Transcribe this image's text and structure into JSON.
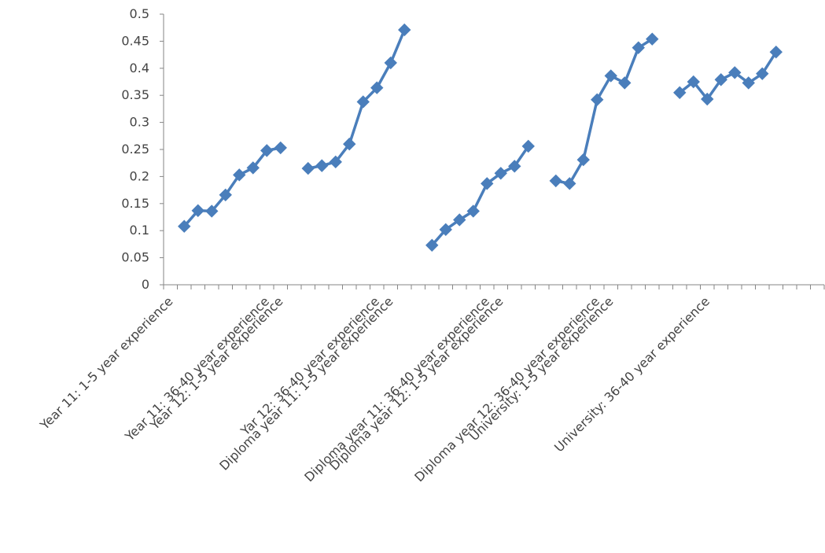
{
  "chart_data": {
    "type": "line",
    "title": "",
    "xlabel": "",
    "ylabel": "",
    "ylim": [
      0,
      0.5
    ],
    "yticks": [
      "0",
      "0.05",
      "0.1",
      "0.15",
      "0.2",
      "0.25",
      "0.3",
      "0.35",
      "0.4",
      "0.45",
      "0.5"
    ],
    "grid": false,
    "legend": "none",
    "line_color": "#4a7ebb",
    "category_count": 48,
    "categories": [
      {
        "index": 1,
        "label": "Year 11: 1-5 year experience"
      },
      {
        "index": 8,
        "label": "Year 11: 36-40 year experience"
      },
      {
        "index": 9,
        "label": "Year 12: 1-5 year experience"
      },
      {
        "index": 16,
        "label": "Yar 12: 36-40 year experience"
      },
      {
        "index": 17,
        "label": "Diploma year 11: 1-5 year experience"
      },
      {
        "index": 24,
        "label": "Diploma year 11: 36-40 year experience"
      },
      {
        "index": 25,
        "label": "Diploma year 12: 1-5 year experience"
      },
      {
        "index": 32,
        "label": "Diploma year 12: 36-40 year experience"
      },
      {
        "index": 33,
        "label": "University: 1-5 year experience"
      },
      {
        "index": 40,
        "label": "University: 36-40 year experience"
      }
    ],
    "segments": [
      {
        "start": 2,
        "values": [
          0.108,
          0.137,
          0.136,
          0.166,
          0.203,
          0.216,
          0.248,
          0.253
        ]
      },
      {
        "start": 11,
        "values": [
          0.215,
          0.22,
          0.227,
          0.26,
          0.338,
          0.364,
          0.41,
          0.471
        ]
      },
      {
        "start": 20,
        "values": [
          0.073,
          0.102,
          0.12,
          0.136,
          0.187,
          0.206,
          0.219,
          0.256
        ]
      },
      {
        "start": 29,
        "values": [
          0.192,
          0.187,
          0.231,
          0.342,
          0.386,
          0.373,
          0.438,
          0.454
        ]
      },
      {
        "start": 38,
        "values": [
          0.355,
          0.375,
          0.343,
          0.379,
          0.392,
          0.373,
          0.39,
          0.43
        ]
      }
    ]
  }
}
